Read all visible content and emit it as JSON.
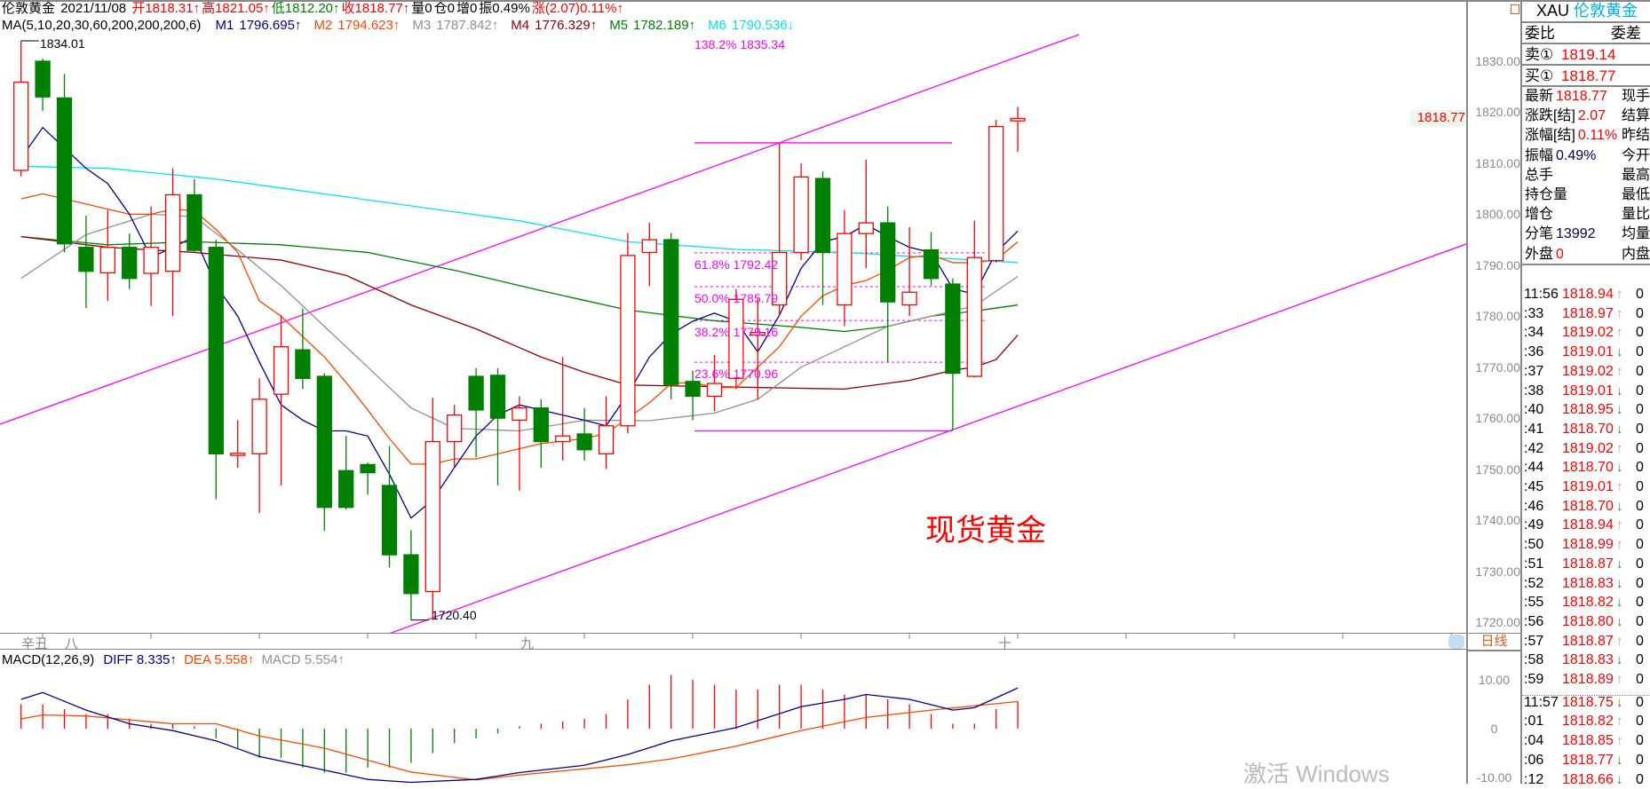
{
  "header": {
    "symbol_name": "伦敦黄金",
    "date": "2021/11/08",
    "items": [
      {
        "text": "开1818.31↑",
        "color": "#ff0000"
      },
      {
        "text": "高1821.05↑",
        "color": "#ff0000"
      },
      {
        "text": "低1812.20↑",
        "color": "#008000"
      },
      {
        "text": "收1818.77↑",
        "color": "#ff0000"
      },
      {
        "text": "量0",
        "color": "#000000"
      },
      {
        "text": "仓0",
        "color": "#000000"
      },
      {
        "text": "增0",
        "color": "#000000"
      },
      {
        "text": "振0.49%",
        "color": "#000000"
      },
      {
        "text": "涨(2.07)0.11%↑",
        "color": "#ff0000"
      }
    ],
    "ma_label": "MA(5,10,20,30,60,200,200,200,6)",
    "ma_items": [
      {
        "name": "M1",
        "value": "1796.695↑",
        "color": "#00008b"
      },
      {
        "name": "M2",
        "value": "1794.623↑",
        "color": "#ff4500"
      },
      {
        "name": "M3",
        "value": "1787.842↑",
        "color": "#909090"
      },
      {
        "name": "M4",
        "value": "1776.329↑",
        "color": "#8b0000"
      },
      {
        "name": "M5",
        "value": "1782.189↑",
        "color": "#008000"
      },
      {
        "name": "M6",
        "value": "1790.536↓",
        "color": "#00e5ee"
      }
    ]
  },
  "annotations": {
    "high_label": "1834.01",
    "low_label": "1720.40",
    "fib_ext": "138.2% 1835.34",
    "fib_levels": [
      {
        "label": "61.8% 1792.42",
        "value": 1792.42
      },
      {
        "label": "50.0% 1785.79",
        "value": 1785.79
      },
      {
        "label": "38.2% 1779.16",
        "value": 1779.16
      },
      {
        "label": "23.6% 1770.96",
        "value": 1770.96
      }
    ],
    "fib_top": 1814.0,
    "fib_bottom": 1757.5,
    "big_text": "现货黄金",
    "channel_color": "#ff00ff"
  },
  "price_axis": {
    "ticks": [
      "1830.00",
      "1820.00",
      "1810.00",
      "1800.00",
      "1790.00",
      "1780.00",
      "1770.00",
      "1760.00",
      "1750.00",
      "1740.00",
      "1730.00",
      "1720.00"
    ],
    "current_price": "1818.77"
  },
  "time_axis": {
    "labels": [
      "辛丑",
      "八",
      "九",
      "十"
    ],
    "period": "日线"
  },
  "macd": {
    "label": "MACD(12,26,9)",
    "diff": "DIFF 8.335↑",
    "dea": "DEA 5.558↑",
    "macd": "MACD 5.554↑",
    "ticks": [
      "10.00",
      "0",
      "-10.00"
    ]
  },
  "chart_data": {
    "type": "candlestick",
    "ylim": [
      1715,
      1838
    ],
    "candles_ohlc": [
      [
        1808.6,
        1834.01,
        1807.4,
        1825.9
      ],
      [
        1830,
        1830.5,
        1820.3,
        1823
      ],
      [
        1822.8,
        1827.5,
        1792.5,
        1794.2
      ],
      [
        1793.5,
        1799.7,
        1781.6,
        1788.8
      ],
      [
        1788.5,
        1800.8,
        1783,
        1793.5
      ],
      [
        1793.5,
        1796.2,
        1785.3,
        1787.4
      ],
      [
        1788.4,
        1801.5,
        1782,
        1793.5
      ],
      [
        1788.8,
        1809,
        1780,
        1803.8
      ],
      [
        1803.8,
        1806.9,
        1792.5,
        1792.9
      ],
      [
        1793.5,
        1795,
        1744.1,
        1753
      ],
      [
        1752.7,
        1759.6,
        1750.3,
        1753.1
      ],
      [
        1753,
        1767.8,
        1741.4,
        1763.7
      ],
      [
        1764.7,
        1780.2,
        1746.8,
        1774
      ],
      [
        1773.4,
        1781.5,
        1765.7,
        1767.8
      ],
      [
        1768.2,
        1768.8,
        1737.9,
        1742.5
      ],
      [
        1749.7,
        1756.5,
        1742.1,
        1742.5
      ],
      [
        1750.9,
        1751.3,
        1745,
        1749.3
      ],
      [
        1746.8,
        1754.5,
        1730.7,
        1733.2
      ],
      [
        1733.2,
        1738,
        1720.4,
        1725.6
      ],
      [
        1726,
        1764,
        1720.4,
        1755.4
      ],
      [
        1755.4,
        1762.6,
        1750.3,
        1760.6
      ],
      [
        1768.2,
        1769.8,
        1752.3,
        1761.6
      ],
      [
        1768.4,
        1769.8,
        1746.8,
        1760
      ],
      [
        1759.6,
        1764.3,
        1745.8,
        1762
      ],
      [
        1762,
        1763.7,
        1750.3,
        1755.4
      ],
      [
        1755.4,
        1772,
        1751.7,
        1756.5
      ],
      [
        1756.9,
        1762,
        1751.7,
        1753.8
      ],
      [
        1753,
        1764.3,
        1750,
        1758.5
      ],
      [
        1758.5,
        1796.3,
        1757,
        1791.9
      ],
      [
        1792.5,
        1798.3,
        1785.9,
        1795
      ],
      [
        1795,
        1796.3,
        1763.7,
        1766.6
      ],
      [
        1767.2,
        1769.3,
        1759.6,
        1764.3
      ],
      [
        1764.3,
        1772.4,
        1761.4,
        1766.8
      ],
      [
        1767.8,
        1785.3,
        1765.7,
        1783.3
      ],
      [
        1776.3,
        1783.5,
        1763.7,
        1776.8
      ],
      [
        1782.2,
        1814,
        1780,
        1792.5
      ],
      [
        1792.5,
        1810,
        1791,
        1807.3
      ],
      [
        1807,
        1808.4,
        1782.2,
        1792.5
      ],
      [
        1782.2,
        1800.8,
        1778.1,
        1796.2
      ],
      [
        1796.2,
        1810.7,
        1789.4,
        1798.3
      ],
      [
        1798.3,
        1801.5,
        1771,
        1782.8
      ],
      [
        1782.2,
        1797.5,
        1780,
        1784.7
      ],
      [
        1793,
        1796.5,
        1786,
        1787.4
      ],
      [
        1786.3,
        1787.4,
        1757.5,
        1768.8
      ],
      [
        1768.2,
        1798.7,
        1768,
        1791.5
      ],
      [
        1790.9,
        1818.5,
        1790.5,
        1817.2
      ],
      [
        1818.31,
        1821.05,
        1812.2,
        1818.77
      ]
    ],
    "ma_series": [
      {
        "name": "M1",
        "color": "#00008b",
        "values": [
          1811,
          1817,
          1813,
          1809,
          1806,
          1800,
          1791.5,
          1793.5,
          1795.6,
          1786,
          1780,
          1771,
          1762.6,
          1759.6,
          1757.5,
          1757.5,
          1756.5,
          1749,
          1740.4,
          1744,
          1750.3,
          1756.5,
          1760.6,
          1762.6,
          1761.6,
          1760.6,
          1759.6,
          1758.5,
          1764.7,
          1772,
          1776.5,
          1779,
          1780.6,
          1779,
          1773,
          1780.2,
          1789.4,
          1794.6,
          1795.6,
          1798,
          1795.6,
          1793.5,
          1792.5,
          1785.4,
          1784.3,
          1792.5,
          1796.7
        ]
      },
      {
        "name": "M2",
        "color": "#ff4500",
        "values": [
          1803,
          1804,
          1803,
          1802,
          1801,
          1800,
          1800,
          1801,
          1800.7,
          1797,
          1792.5,
          1783,
          1780,
          1776,
          1772,
          1767,
          1761.6,
          1756,
          1751,
          1751,
          1752,
          1752,
          1753,
          1754,
          1755,
          1755.5,
          1756,
          1757,
          1760,
          1763,
          1766.8,
          1767,
          1766,
          1766,
          1770,
          1774,
          1780,
          1784,
          1786,
          1787,
          1789,
          1791.5,
          1792,
          1790.5,
          1790.5,
          1791,
          1794.6
        ]
      },
      {
        "name": "M3",
        "color": "#909090",
        "points": [
          [
            0,
            1787.4
          ],
          [
            3,
            1796
          ],
          [
            6,
            1800
          ],
          [
            8,
            1799.5
          ],
          [
            10,
            1793
          ],
          [
            12,
            1786
          ],
          [
            14,
            1778
          ],
          [
            16,
            1770
          ],
          [
            18,
            1762
          ],
          [
            20,
            1758
          ],
          [
            23,
            1757.5
          ],
          [
            26,
            1759.6
          ],
          [
            29,
            1759.5
          ],
          [
            32,
            1761
          ],
          [
            34,
            1763.7
          ],
          [
            36,
            1770
          ],
          [
            38,
            1774
          ],
          [
            40,
            1778
          ],
          [
            42,
            1780
          ],
          [
            44,
            1782
          ],
          [
            46,
            1787.8
          ]
        ]
      },
      {
        "name": "M4",
        "color": "#8b0000",
        "points": [
          [
            0,
            1795.6
          ],
          [
            4,
            1793.5
          ],
          [
            8,
            1792.5
          ],
          [
            12,
            1791
          ],
          [
            15,
            1788
          ],
          [
            18,
            1782.2
          ],
          [
            21,
            1777.5
          ],
          [
            24,
            1772
          ],
          [
            26,
            1769
          ],
          [
            28,
            1766.5
          ],
          [
            38,
            1765.7
          ],
          [
            41,
            1767.4
          ],
          [
            43,
            1769.4
          ],
          [
            44,
            1770
          ],
          [
            45,
            1771.5
          ],
          [
            46,
            1776.3
          ]
        ]
      },
      {
        "name": "M5",
        "color": "#008000",
        "points": [
          [
            0,
            1795.6
          ],
          [
            4,
            1794
          ],
          [
            8,
            1794.6
          ],
          [
            12,
            1794
          ],
          [
            16,
            1792.5
          ],
          [
            20,
            1789
          ],
          [
            24,
            1785
          ],
          [
            28,
            1781.2
          ],
          [
            32,
            1779.1
          ],
          [
            36,
            1777.8
          ],
          [
            38,
            1777
          ],
          [
            40,
            1778
          ],
          [
            42,
            1780
          ],
          [
            44,
            1781
          ],
          [
            46,
            1782.2
          ]
        ]
      },
      {
        "name": "M6",
        "color": "#00e5ee",
        "points": [
          [
            0,
            1809.4
          ],
          [
            4,
            1809
          ],
          [
            9,
            1806.9
          ],
          [
            16,
            1802.8
          ],
          [
            23,
            1798.7
          ],
          [
            28,
            1794.6
          ],
          [
            33,
            1793.1
          ],
          [
            38,
            1792.5
          ],
          [
            46,
            1790.5
          ]
        ]
      }
    ],
    "macd_diff": {
      "color": "#00008b",
      "points": [
        [
          0,
          6
        ],
        [
          1,
          7.4
        ],
        [
          3,
          3.8
        ],
        [
          5,
          1
        ],
        [
          7,
          -0.4
        ],
        [
          9,
          -2.5
        ],
        [
          11,
          -5.7
        ],
        [
          14,
          -8.5
        ],
        [
          16,
          -10.4
        ],
        [
          18,
          -11
        ],
        [
          21,
          -10.4
        ],
        [
          23,
          -9
        ],
        [
          26,
          -7.5
        ],
        [
          28,
          -5.3
        ],
        [
          30,
          -2.5
        ],
        [
          33,
          0.2
        ],
        [
          36,
          4.5
        ],
        [
          38,
          6
        ],
        [
          39,
          7
        ],
        [
          41,
          6
        ],
        [
          43,
          3.8
        ],
        [
          44,
          4.3
        ],
        [
          46,
          8.335
        ]
      ]
    },
    "macd_dea": {
      "color": "#ff4500",
      "points": [
        [
          0,
          2
        ],
        [
          1,
          2.8
        ],
        [
          3,
          2.6
        ],
        [
          7,
          1
        ],
        [
          9,
          1
        ],
        [
          11,
          -1.5
        ],
        [
          14,
          -4
        ],
        [
          18,
          -8.9
        ],
        [
          21,
          -10.5
        ],
        [
          23,
          -9.5
        ],
        [
          28,
          -7.4
        ],
        [
          30,
          -6.2
        ],
        [
          33,
          -3.6
        ],
        [
          36,
          -0.4
        ],
        [
          39,
          2.3
        ],
        [
          42,
          3.8
        ],
        [
          46,
          5.558
        ]
      ]
    },
    "macd_bars": [
      5,
      5,
      4,
      3,
      3,
      2,
      1,
      1,
      0.5,
      -2,
      -4,
      -6,
      -6,
      -8,
      -9,
      -9,
      -8,
      -8,
      -7,
      -5,
      -3,
      -2,
      -1,
      0.5,
      1,
      1.5,
      2,
      3,
      6,
      9,
      11,
      10,
      9,
      8,
      8,
      9,
      9,
      8,
      7,
      7,
      6,
      5,
      3,
      1,
      1,
      4,
      5.554
    ]
  },
  "quote_panel": {
    "symbol": "XAU",
    "name": "伦敦黄金",
    "row1": {
      "left": "委比",
      "right": "委差"
    },
    "sell": {
      "label": "卖①",
      "value": "1819.14"
    },
    "buy": {
      "label": "买①",
      "value": "1818.77"
    },
    "stats": [
      {
        "label": "最新",
        "value": "1818.77",
        "color": "#ff0000",
        "right": "现手"
      },
      {
        "label": "涨跌[结]",
        "value": "2.07",
        "color": "#ff0000",
        "right": "结算价"
      },
      {
        "label": "涨幅[结]",
        "value": "0.11%",
        "color": "#ff0000",
        "right": "昨结算"
      },
      {
        "label": "振幅",
        "value": "0.49%",
        "color": "#00004a",
        "right": "今开"
      },
      {
        "label": "总手",
        "value": "",
        "color": "#000000",
        "right": "最高"
      },
      {
        "label": "持仓量",
        "value": "",
        "color": "#000000",
        "right": "最低"
      },
      {
        "label": "增仓",
        "value": "",
        "color": "#000000",
        "right": "量比"
      },
      {
        "label": "分笔",
        "value": "13992",
        "color": "#00004a",
        "right": "均量"
      },
      {
        "label": "外盘",
        "value": "0",
        "color": "#ff0000",
        "right": "内盘"
      }
    ],
    "ticks": [
      {
        "time": "11:56",
        "price": "1818.94",
        "dir": "up",
        "vol": "0"
      },
      {
        "time": ":33",
        "price": "1818.97",
        "dir": "up",
        "vol": "0"
      },
      {
        "time": ":34",
        "price": "1819.02",
        "dir": "up",
        "vol": "0"
      },
      {
        "time": ":36",
        "price": "1819.01",
        "dir": "down",
        "vol": "0"
      },
      {
        "time": ":37",
        "price": "1819.02",
        "dir": "up",
        "vol": "0"
      },
      {
        "time": ":38",
        "price": "1819.01",
        "dir": "down",
        "vol": "0"
      },
      {
        "time": ":40",
        "price": "1818.95",
        "dir": "down",
        "vol": "0"
      },
      {
        "time": ":41",
        "price": "1818.70",
        "dir": "down",
        "vol": "0"
      },
      {
        "time": ":42",
        "price": "1819.02",
        "dir": "up",
        "vol": "0"
      },
      {
        "time": ":44",
        "price": "1818.70",
        "dir": "down",
        "vol": "0"
      },
      {
        "time": ":45",
        "price": "1819.01",
        "dir": "up",
        "vol": "0"
      },
      {
        "time": ":46",
        "price": "1818.70",
        "dir": "down",
        "vol": "0"
      },
      {
        "time": ":49",
        "price": "1818.94",
        "dir": "up",
        "vol": "0"
      },
      {
        "time": ":50",
        "price": "1818.99",
        "dir": "up",
        "vol": "0"
      },
      {
        "time": ":51",
        "price": "1818.87",
        "dir": "down",
        "vol": "0"
      },
      {
        "time": ":52",
        "price": "1818.83",
        "dir": "down",
        "vol": "0"
      },
      {
        "time": ":55",
        "price": "1818.82",
        "dir": "down",
        "vol": "0"
      },
      {
        "time": ":56",
        "price": "1818.80",
        "dir": "down",
        "vol": "0"
      },
      {
        "time": ":57",
        "price": "1818.87",
        "dir": "up",
        "vol": "0"
      },
      {
        "time": ":58",
        "price": "1818.83",
        "dir": "down",
        "vol": "0"
      },
      {
        "time": ":59",
        "price": "1818.89",
        "dir": "up",
        "vol": "0"
      },
      {
        "time": "11:57",
        "price": "1818.75",
        "dir": "down",
        "vol": "0"
      },
      {
        "time": ":01",
        "price": "1818.82",
        "dir": "up",
        "vol": "0"
      },
      {
        "time": ":04",
        "price": "1818.85",
        "dir": "up",
        "vol": "0"
      },
      {
        "time": ":06",
        "price": "1818.77",
        "dir": "down",
        "vol": "0"
      },
      {
        "time": ":12",
        "price": "1818.66",
        "dir": "down",
        "vol": "0"
      }
    ]
  },
  "watermark": "激活 Windows"
}
